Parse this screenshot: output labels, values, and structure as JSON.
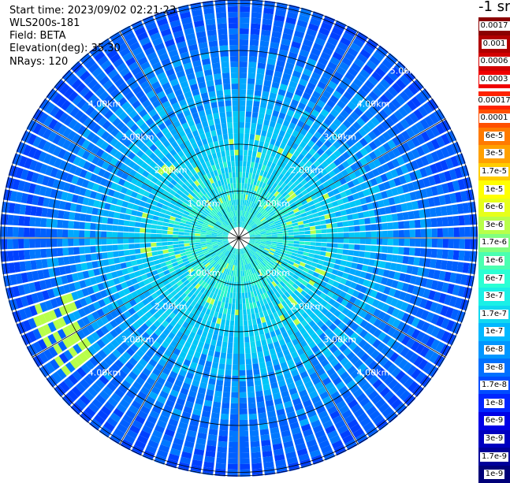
{
  "info": {
    "start_time": "Start time: 2023/09/02 02:21:23",
    "device": "WLS200s-181",
    "field": "Field: BETA",
    "elevation": "Elevation(deg): 35.30",
    "nrays": "NRays: 120"
  },
  "colorbar": {
    "unit_label": "-1 sr",
    "high_group": [
      {
        "label": "0.0017",
        "color": "#8b0000"
      },
      {
        "label": "0.001",
        "color": "#b00000"
      },
      {
        "label": "0.0006",
        "color": "#d20000"
      },
      {
        "label": "0.0003",
        "color": "#f00000"
      }
    ],
    "main_group": [
      {
        "label": "0.00017",
        "color": "#ff2200"
      },
      {
        "label": "0.0001",
        "color": "#ff5000"
      },
      {
        "label": "6e-5",
        "color": "#ff7a00"
      },
      {
        "label": "3e-5",
        "color": "#ffa000"
      },
      {
        "label": "1.7e-5",
        "color": "#ffcc00"
      },
      {
        "label": "1e-5",
        "color": "#ffff00"
      },
      {
        "label": "6e-6",
        "color": "#e6ff1a"
      },
      {
        "label": "3e-6",
        "color": "#b8ff4a"
      },
      {
        "label": "1.7e-6",
        "color": "#80ff80"
      },
      {
        "label": "1e-6",
        "color": "#4affb0"
      },
      {
        "label": "6e-7",
        "color": "#2bffd4"
      },
      {
        "label": "3e-7",
        "color": "#1af0e6"
      },
      {
        "label": "1.7e-7",
        "color": "#10d8f0"
      },
      {
        "label": "1e-7",
        "color": "#00b8ff"
      },
      {
        "label": "6e-8",
        "color": "#0096ff"
      },
      {
        "label": "3e-8",
        "color": "#0070ff"
      },
      {
        "label": "1.7e-8",
        "color": "#004cff"
      },
      {
        "label": "1e-8",
        "color": "#0026ff"
      },
      {
        "label": "6e-9",
        "color": "#0000e6"
      },
      {
        "label": "3e-9",
        "color": "#0000c0"
      },
      {
        "label": "1.7e-9",
        "color": "#00009a"
      },
      {
        "label": "1e-9",
        "color": "#000078"
      }
    ]
  },
  "chart_data": {
    "type": "heatmap",
    "projection": "polar (PPI scan)",
    "field": "BETA",
    "elevation_deg": 35.3,
    "n_rays": 120,
    "range_rings_km": [
      1,
      2,
      3,
      4,
      5
    ],
    "ring_labels": [
      "1.00km",
      "2.00km",
      "3.00km",
      "4.00km",
      "5.00km"
    ],
    "spoke_angles_deg": [
      0,
      30,
      60,
      90,
      120,
      150,
      180,
      210,
      240,
      270,
      300,
      330
    ],
    "color_scale": "log",
    "value_range": [
      1e-09,
      0.0017
    ],
    "typical_level_by_range": [
      {
        "range_km": 1,
        "level": "3e-7"
      },
      {
        "range_km": 2,
        "level": "1.7e-7"
      },
      {
        "range_km": 3,
        "level": "6e-8"
      },
      {
        "range_km": 4,
        "level": "3e-8"
      },
      {
        "range_km": 5,
        "level": "1.7e-8"
      }
    ],
    "colors": {
      "near": "#2bf5c8",
      "mid": "#10d8f0",
      "far": "#0078ff",
      "edge": "#0040ff",
      "hotspot": "#b8ff4a"
    }
  }
}
